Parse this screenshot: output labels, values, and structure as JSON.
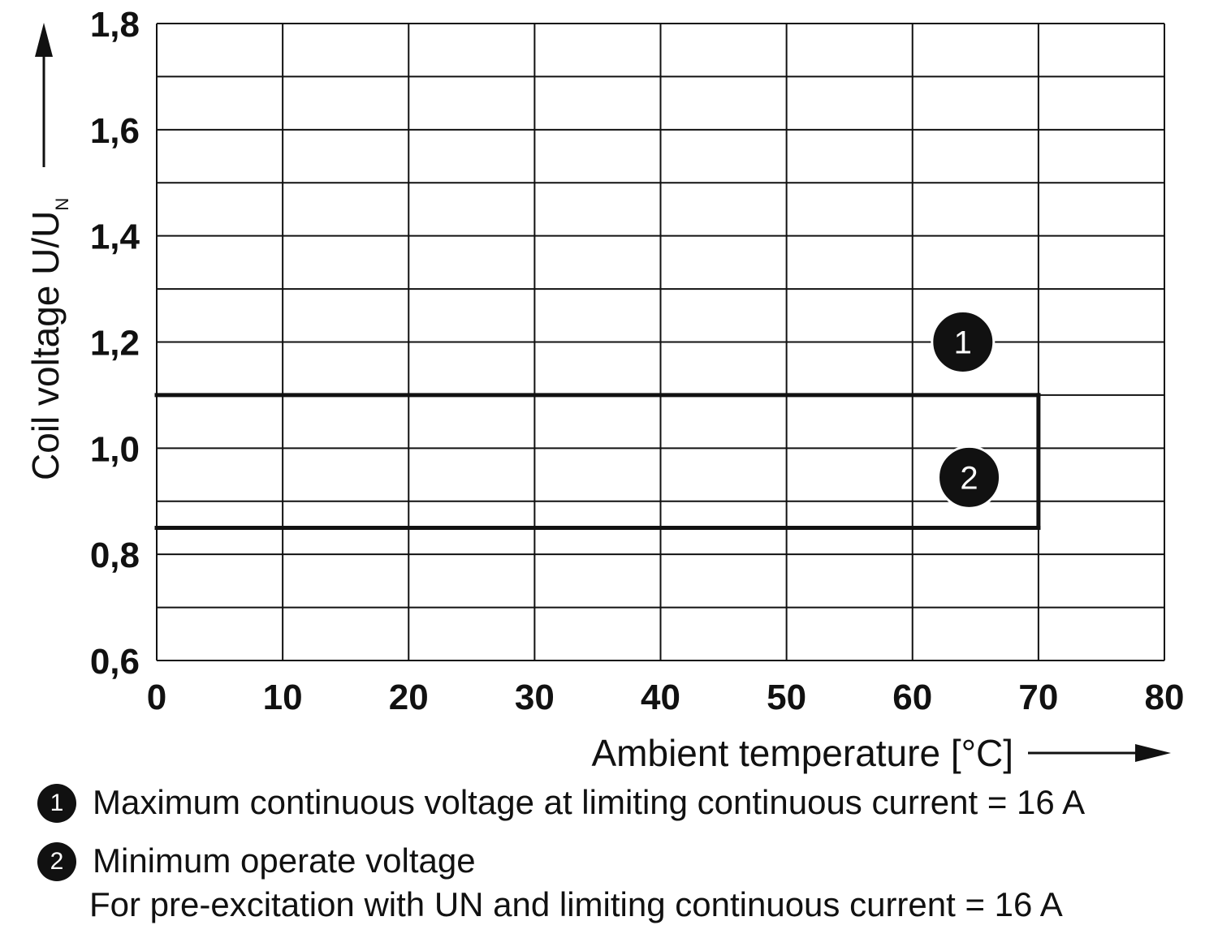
{
  "chart_data": {
    "type": "line",
    "xlabel": "Ambient temperature [°C]",
    "ylabel": "Coil voltage U/U",
    "ylabel_subscript": "N",
    "xlim": [
      0,
      80
    ],
    "ylim": [
      0.6,
      1.8
    ],
    "x_ticks": [
      0,
      10,
      20,
      30,
      40,
      50,
      60,
      70,
      80
    ],
    "x_tick_labels": [
      "0",
      "10",
      "20",
      "30",
      "40",
      "50",
      "60",
      "70",
      "80"
    ],
    "y_ticks": [
      0.6,
      0.8,
      1.0,
      1.2,
      1.4,
      1.6,
      1.8
    ],
    "y_tick_labels": [
      "0,6",
      "0,8",
      "1,0",
      "1,2",
      "1,4",
      "1,6",
      "1,8"
    ],
    "y_minor_gridlines": [
      0.7,
      0.9,
      1.1,
      1.3,
      1.5,
      1.7
    ],
    "grid": true,
    "series": [
      {
        "x": [
          0,
          70
        ],
        "y": [
          1.1,
          1.1
        ]
      },
      {
        "x": [
          0,
          70
        ],
        "y": [
          0.85,
          0.85
        ]
      },
      {
        "x": [
          70,
          70
        ],
        "y": [
          0.85,
          1.1
        ]
      }
    ],
    "markers": [
      {
        "label": "1",
        "x": 64,
        "y": 1.2
      },
      {
        "label": "2",
        "x": 64.5,
        "y": 0.945
      }
    ]
  },
  "legend": [
    {
      "badge": "1",
      "lines": [
        "Maximum continuous voltage at limiting continuous current = 16 A"
      ]
    },
    {
      "badge": "2",
      "lines": [
        "Minimum operate voltage",
        "For pre-excitation with UN and limiting continuous current = 16 A"
      ]
    }
  ]
}
